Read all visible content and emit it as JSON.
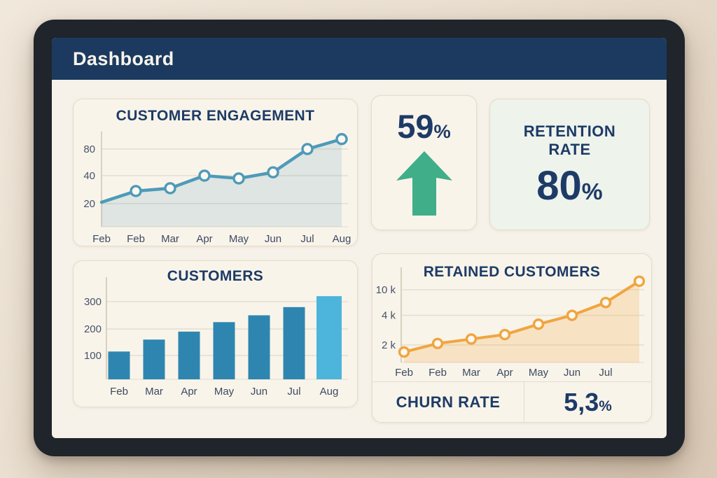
{
  "header": {
    "title": "Dashboard"
  },
  "colors": {
    "header_navy": "#1c3a5f",
    "text_navy": "#1d3b66",
    "line_blue": "#4e9ab9",
    "bar_blue": "#2e86b0",
    "bar_highlight_blue": "#4db4dc",
    "line_orange": "#f0a53f",
    "positive_green": "#3fae89",
    "retention_card_bg": "#eef3ec",
    "screen_bg": "#f7f2e9"
  },
  "cards": {
    "uplift": {
      "value": "59",
      "percent_sign": "%",
      "icon": "arrow-up"
    },
    "retention": {
      "title": "RETENTION RATE",
      "value": "80",
      "percent_sign": "%"
    },
    "churn": {
      "label": "CHURN RATE",
      "value": "5,3",
      "percent_sign": "%"
    }
  },
  "chart_data": [
    {
      "id": "engagement",
      "type": "line",
      "title": "CUSTOMER ENGAGEMENT",
      "x_labels": [
        "Feb",
        "Feb",
        "Mar",
        "Apr",
        "May",
        "Jun",
        "Jul",
        "Aug"
      ],
      "values": [
        21,
        29,
        31,
        40,
        38,
        45,
        80,
        95
      ],
      "y_ticks": [
        20,
        40,
        80
      ],
      "y_tick_labels": [
        "20",
        "40",
        "80"
      ],
      "ylim": [
        0,
        100
      ],
      "line_color": "#4e9ab9",
      "area_fill": "rgba(78,154,185,0.16)",
      "marker_fill": "#fbf8f1",
      "markers": true,
      "marker_skip_first": true,
      "grid": true,
      "legend": "none"
    },
    {
      "id": "customers",
      "type": "bar",
      "title": "CUSTOMERS",
      "categories": [
        "Feb",
        "Mar",
        "Apr",
        "May",
        "Jun",
        "Jul",
        "Aug"
      ],
      "values": [
        115,
        160,
        190,
        225,
        250,
        280,
        320
      ],
      "y_ticks": [
        100,
        200,
        300
      ],
      "y_tick_labels": [
        "100",
        "200",
        "300"
      ],
      "ylim": [
        0,
        340
      ],
      "bar_color": "#2e86b0",
      "last_bar_color": "#4db4dc",
      "grid": true,
      "legend": "none"
    },
    {
      "id": "retained",
      "type": "line",
      "title": "RETAINED CUSTOMERS",
      "x_labels": [
        "Feb",
        "Feb",
        "Mar",
        "Apr",
        "May",
        "Jun",
        "Jul",
        ""
      ],
      "values": [
        1200,
        2100,
        2400,
        2700,
        3400,
        4000,
        7000,
        12000
      ],
      "y_ticks": [
        2000,
        4000,
        10000
      ],
      "y_tick_labels": [
        "2 k",
        "4 k",
        "10 k"
      ],
      "ylim": [
        0,
        13000
      ],
      "line_color": "#f0a53f",
      "area_fill": "rgba(240,165,63,0.22)",
      "marker_fill": "#fbf8f1",
      "markers": true,
      "marker_skip_first": false,
      "grid": true,
      "legend": "none"
    }
  ]
}
